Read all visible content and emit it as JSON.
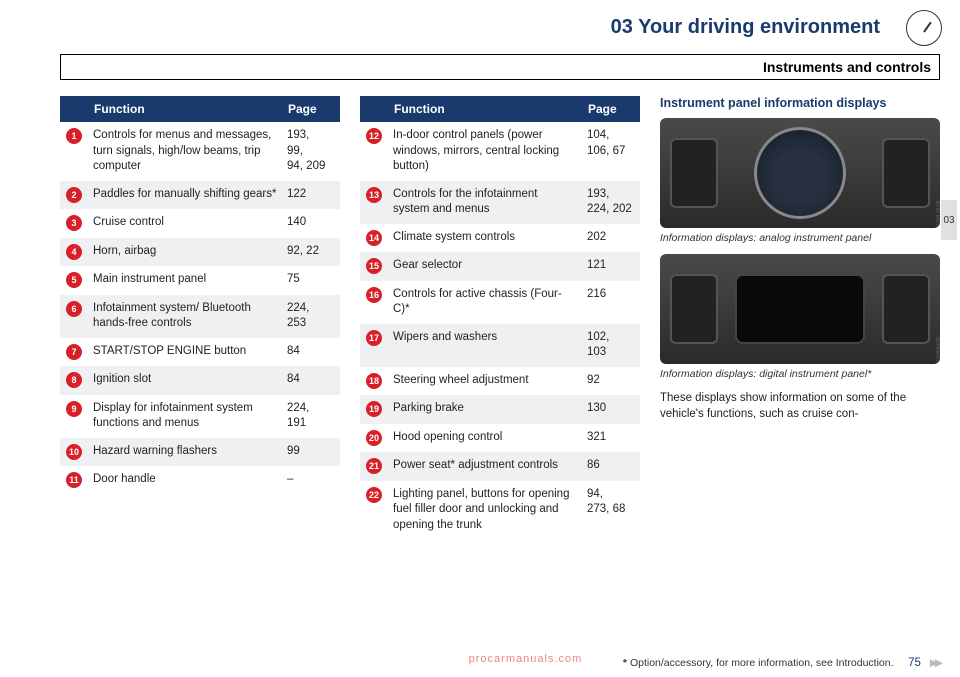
{
  "chapter": "03 Your driving environment",
  "sectionTitle": "Instruments and controls",
  "sideTab": "03",
  "table1": {
    "headers": {
      "blank": "",
      "func": "Function",
      "page": "Page"
    },
    "rows": [
      {
        "n": "1",
        "func": "Controls for menus and messages, turn signals, high/low beams, trip computer",
        "page": "193,\n99,\n94, 209"
      },
      {
        "n": "2",
        "func": "Paddles for manually shifting gears*",
        "page": "122"
      },
      {
        "n": "3",
        "func": "Cruise control",
        "page": "140"
      },
      {
        "n": "4",
        "func": "Horn, airbag",
        "page": "92, 22"
      },
      {
        "n": "5",
        "func": "Main instrument panel",
        "page": "75"
      },
      {
        "n": "6",
        "func": "Infotainment system/ Bluetooth hands-free controls",
        "page": "224,\n253"
      },
      {
        "n": "7",
        "func": "START/STOP ENGINE button",
        "page": "84"
      },
      {
        "n": "8",
        "func": "Ignition slot",
        "page": "84"
      },
      {
        "n": "9",
        "func": "Display for infotainment system functions and menus",
        "page": "224,\n191"
      },
      {
        "n": "10",
        "func": "Hazard warning flashers",
        "page": "99"
      },
      {
        "n": "11",
        "func": "Door handle",
        "page": "–"
      }
    ]
  },
  "table2": {
    "headers": {
      "blank": "",
      "func": "Function",
      "page": "Page"
    },
    "rows": [
      {
        "n": "12",
        "func": "In-door control panels (power windows, mirrors, central locking button)",
        "page": "104,\n106, 67"
      },
      {
        "n": "13",
        "func": "Controls for the infotainment system and menus",
        "page": "193,\n224, 202"
      },
      {
        "n": "14",
        "func": "Climate system controls",
        "page": "202"
      },
      {
        "n": "15",
        "func": "Gear selector",
        "page": "121"
      },
      {
        "n": "16",
        "func": "Controls for active chassis (Four-C)*",
        "page": "216"
      },
      {
        "n": "17",
        "func": "Wipers and washers",
        "page": "102,\n103"
      },
      {
        "n": "18",
        "func": "Steering wheel adjustment",
        "page": "92"
      },
      {
        "n": "19",
        "func": "Parking brake",
        "page": "130"
      },
      {
        "n": "20",
        "func": "Hood opening control",
        "page": "321"
      },
      {
        "n": "21",
        "func": "Power seat* adjustment controls",
        "page": "86"
      },
      {
        "n": "22",
        "func": "Lighting panel, buttons for opening fuel filler door and unlocking and opening the trunk",
        "page": "94,\n273, 68"
      }
    ]
  },
  "rightCol": {
    "heading": "Instrument panel information displays",
    "img1_code": "G047979",
    "caption1": "Information displays: analog instrument panel",
    "img2_code": "G048500",
    "caption2": "Information displays: digital instrument panel*",
    "body": "These displays show information on some of the vehicle's functions, such as cruise con-"
  },
  "footer": {
    "optNote": "Option/accessory, for more information, see Introduction.",
    "pageNum": "75",
    "watermark": "procarmanuals.com"
  }
}
